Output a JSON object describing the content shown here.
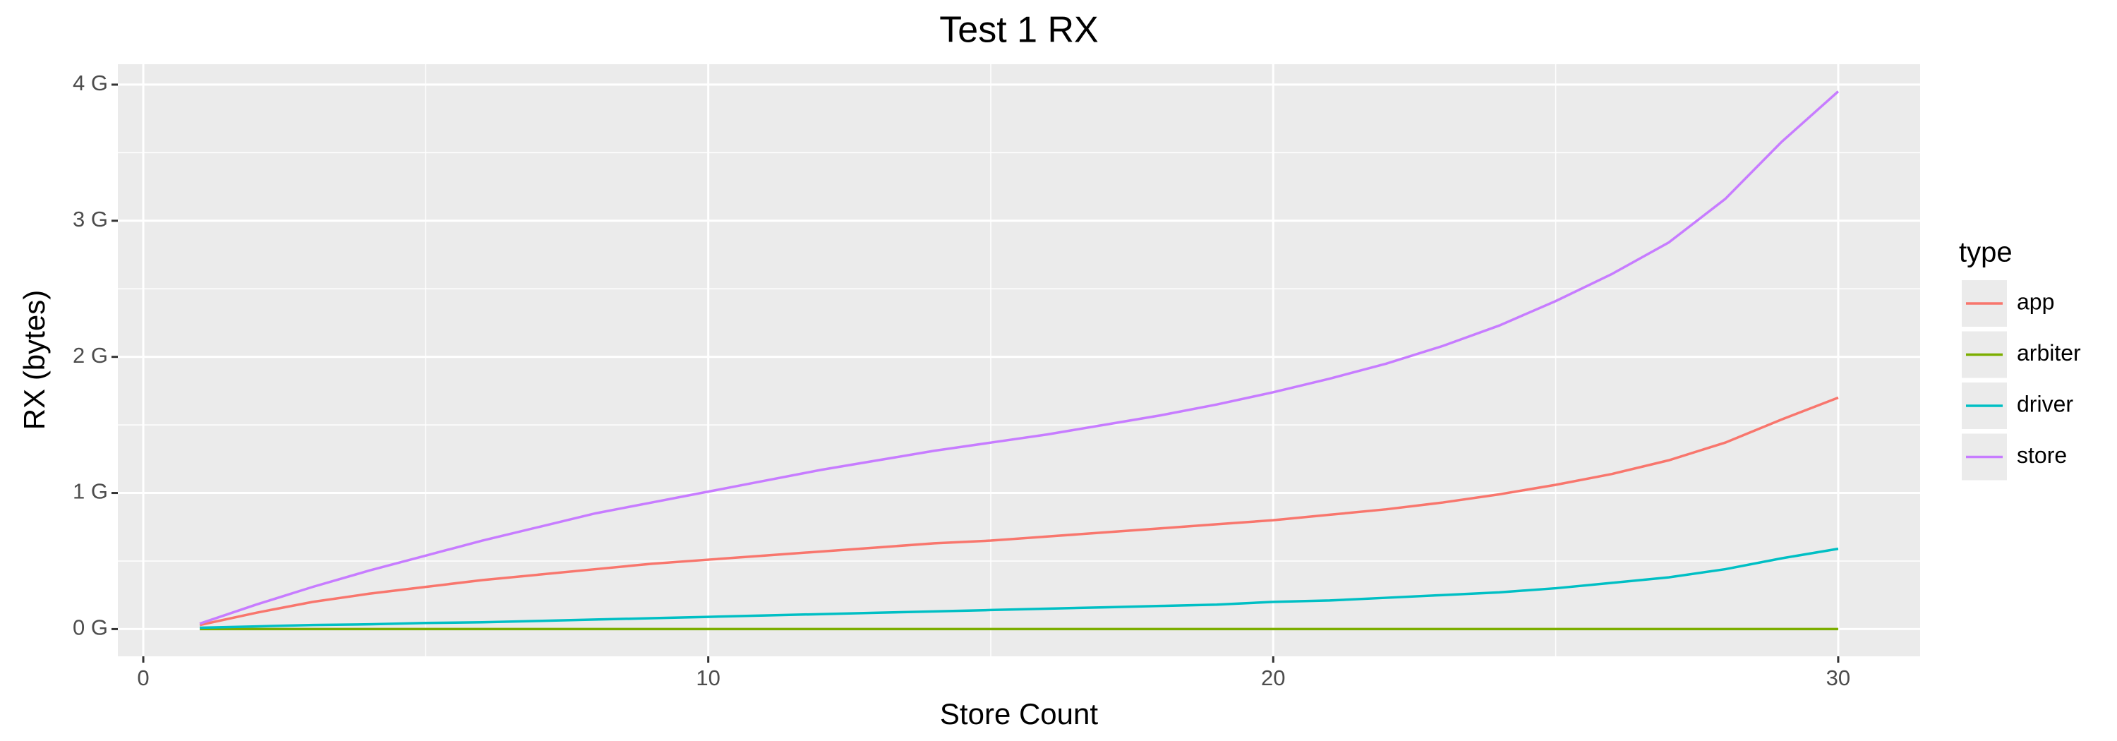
{
  "chart_data": {
    "type": "line",
    "title": "Test 1 RX",
    "x_label": "Store Count",
    "y_label": "RX (bytes)",
    "x": [
      1,
      2,
      3,
      4,
      5,
      6,
      7,
      8,
      9,
      10,
      11,
      12,
      13,
      14,
      15,
      16,
      17,
      18,
      19,
      20,
      21,
      22,
      23,
      24,
      25,
      26,
      27,
      28,
      29,
      30
    ],
    "series": [
      {
        "name": "app",
        "color": "#F8766D",
        "values": [
          0.03,
          0.12,
          0.2,
          0.26,
          0.31,
          0.36,
          0.4,
          0.44,
          0.48,
          0.51,
          0.54,
          0.57,
          0.6,
          0.63,
          0.65,
          0.68,
          0.71,
          0.74,
          0.77,
          0.8,
          0.84,
          0.88,
          0.93,
          0.99,
          1.06,
          1.14,
          1.24,
          1.37,
          1.54,
          1.7
        ]
      },
      {
        "name": "arbiter",
        "color": "#7CAE00",
        "values": [
          0,
          0,
          0,
          0,
          0,
          0,
          0,
          0,
          0,
          0,
          0,
          0,
          0,
          0,
          0,
          0,
          0,
          0,
          0,
          0,
          0,
          0,
          0,
          0,
          0,
          0,
          0,
          0,
          0,
          0
        ]
      },
      {
        "name": "driver",
        "color": "#00BFC4",
        "values": [
          0.01,
          0.02,
          0.03,
          0.035,
          0.045,
          0.05,
          0.06,
          0.07,
          0.08,
          0.09,
          0.1,
          0.11,
          0.12,
          0.13,
          0.14,
          0.15,
          0.16,
          0.17,
          0.18,
          0.2,
          0.21,
          0.23,
          0.25,
          0.27,
          0.3,
          0.34,
          0.38,
          0.44,
          0.52,
          0.59
        ]
      },
      {
        "name": "store",
        "color": "#C77CFF",
        "values": [
          0.04,
          0.18,
          0.31,
          0.43,
          0.54,
          0.65,
          0.75,
          0.85,
          0.93,
          1.01,
          1.09,
          1.17,
          1.24,
          1.31,
          1.37,
          1.43,
          1.5,
          1.57,
          1.65,
          1.74,
          1.84,
          1.95,
          2.08,
          2.23,
          2.41,
          2.61,
          2.84,
          3.16,
          3.58,
          3.95
        ]
      }
    ],
    "legend_title": "type",
    "xlim": [
      -0.45,
      31.45
    ],
    "xticks": [
      0,
      10,
      20,
      30
    ],
    "xminor": [
      5,
      15,
      25
    ],
    "ylim": [
      -0.2,
      4.15
    ],
    "yticks": [
      {
        "value": 0,
        "label": "0 G"
      },
      {
        "value": 1,
        "label": "1 G"
      },
      {
        "value": 2,
        "label": "2 G"
      },
      {
        "value": 3,
        "label": "3 G"
      },
      {
        "value": 4,
        "label": "4 G"
      }
    ],
    "yminor": [
      0.5,
      1.5,
      2.5,
      3.5
    ],
    "grid": true
  }
}
